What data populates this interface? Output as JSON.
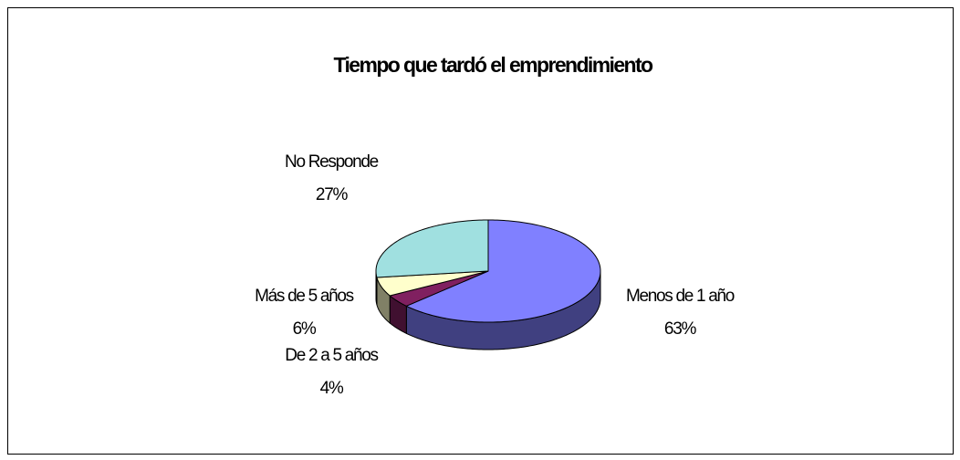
{
  "chart_data": {
    "type": "pie3d",
    "title": "Tiempo que tardó el emprendimiento",
    "categories": [
      "Menos de 1 año",
      "De 2 a 5 años",
      "Más de 5 años",
      "No Responde"
    ],
    "values": [
      63,
      4,
      6,
      27
    ],
    "value_labels": [
      "63%",
      "4%",
      "6%",
      "27%"
    ],
    "colors": [
      "#8080ff",
      "#802060",
      "#ffffcc",
      "#a0e0e0"
    ]
  }
}
